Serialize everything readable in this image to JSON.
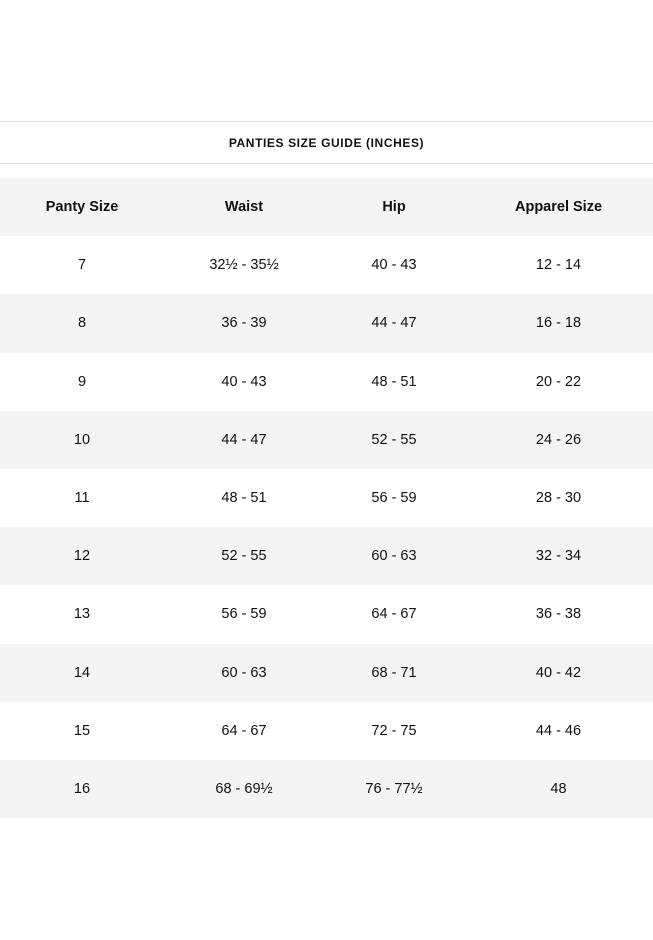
{
  "title": "PANTIES SIZE GUIDE (INCHES)",
  "columns": [
    "Panty Size",
    "Waist",
    "Hip",
    "Apparel Size"
  ],
  "rows": [
    [
      "7",
      "32½ - 35½",
      "40 - 43",
      "12 - 14"
    ],
    [
      "8",
      "36 - 39",
      "44 - 47",
      "16 - 18"
    ],
    [
      "9",
      "40 - 43",
      "48 - 51",
      "20 - 22"
    ],
    [
      "10",
      "44 - 47",
      "52 - 55",
      "24 - 26"
    ],
    [
      "11",
      "48 - 51",
      "56 - 59",
      "28 - 30"
    ],
    [
      "12",
      "52 - 55",
      "60 - 63",
      "32 - 34"
    ],
    [
      "13",
      "56 - 59",
      "64 - 67",
      "36 - 38"
    ],
    [
      "14",
      "60 - 63",
      "68 - 71",
      "40 - 42"
    ],
    [
      "15",
      "64 - 67",
      "72 - 75",
      "44 - 46"
    ],
    [
      "16",
      "68 - 69½",
      "76 - 77½",
      "48"
    ]
  ],
  "colors": {
    "stripe": "#f4f4f4",
    "divider": "#e2e2e2",
    "text": "#111111"
  }
}
